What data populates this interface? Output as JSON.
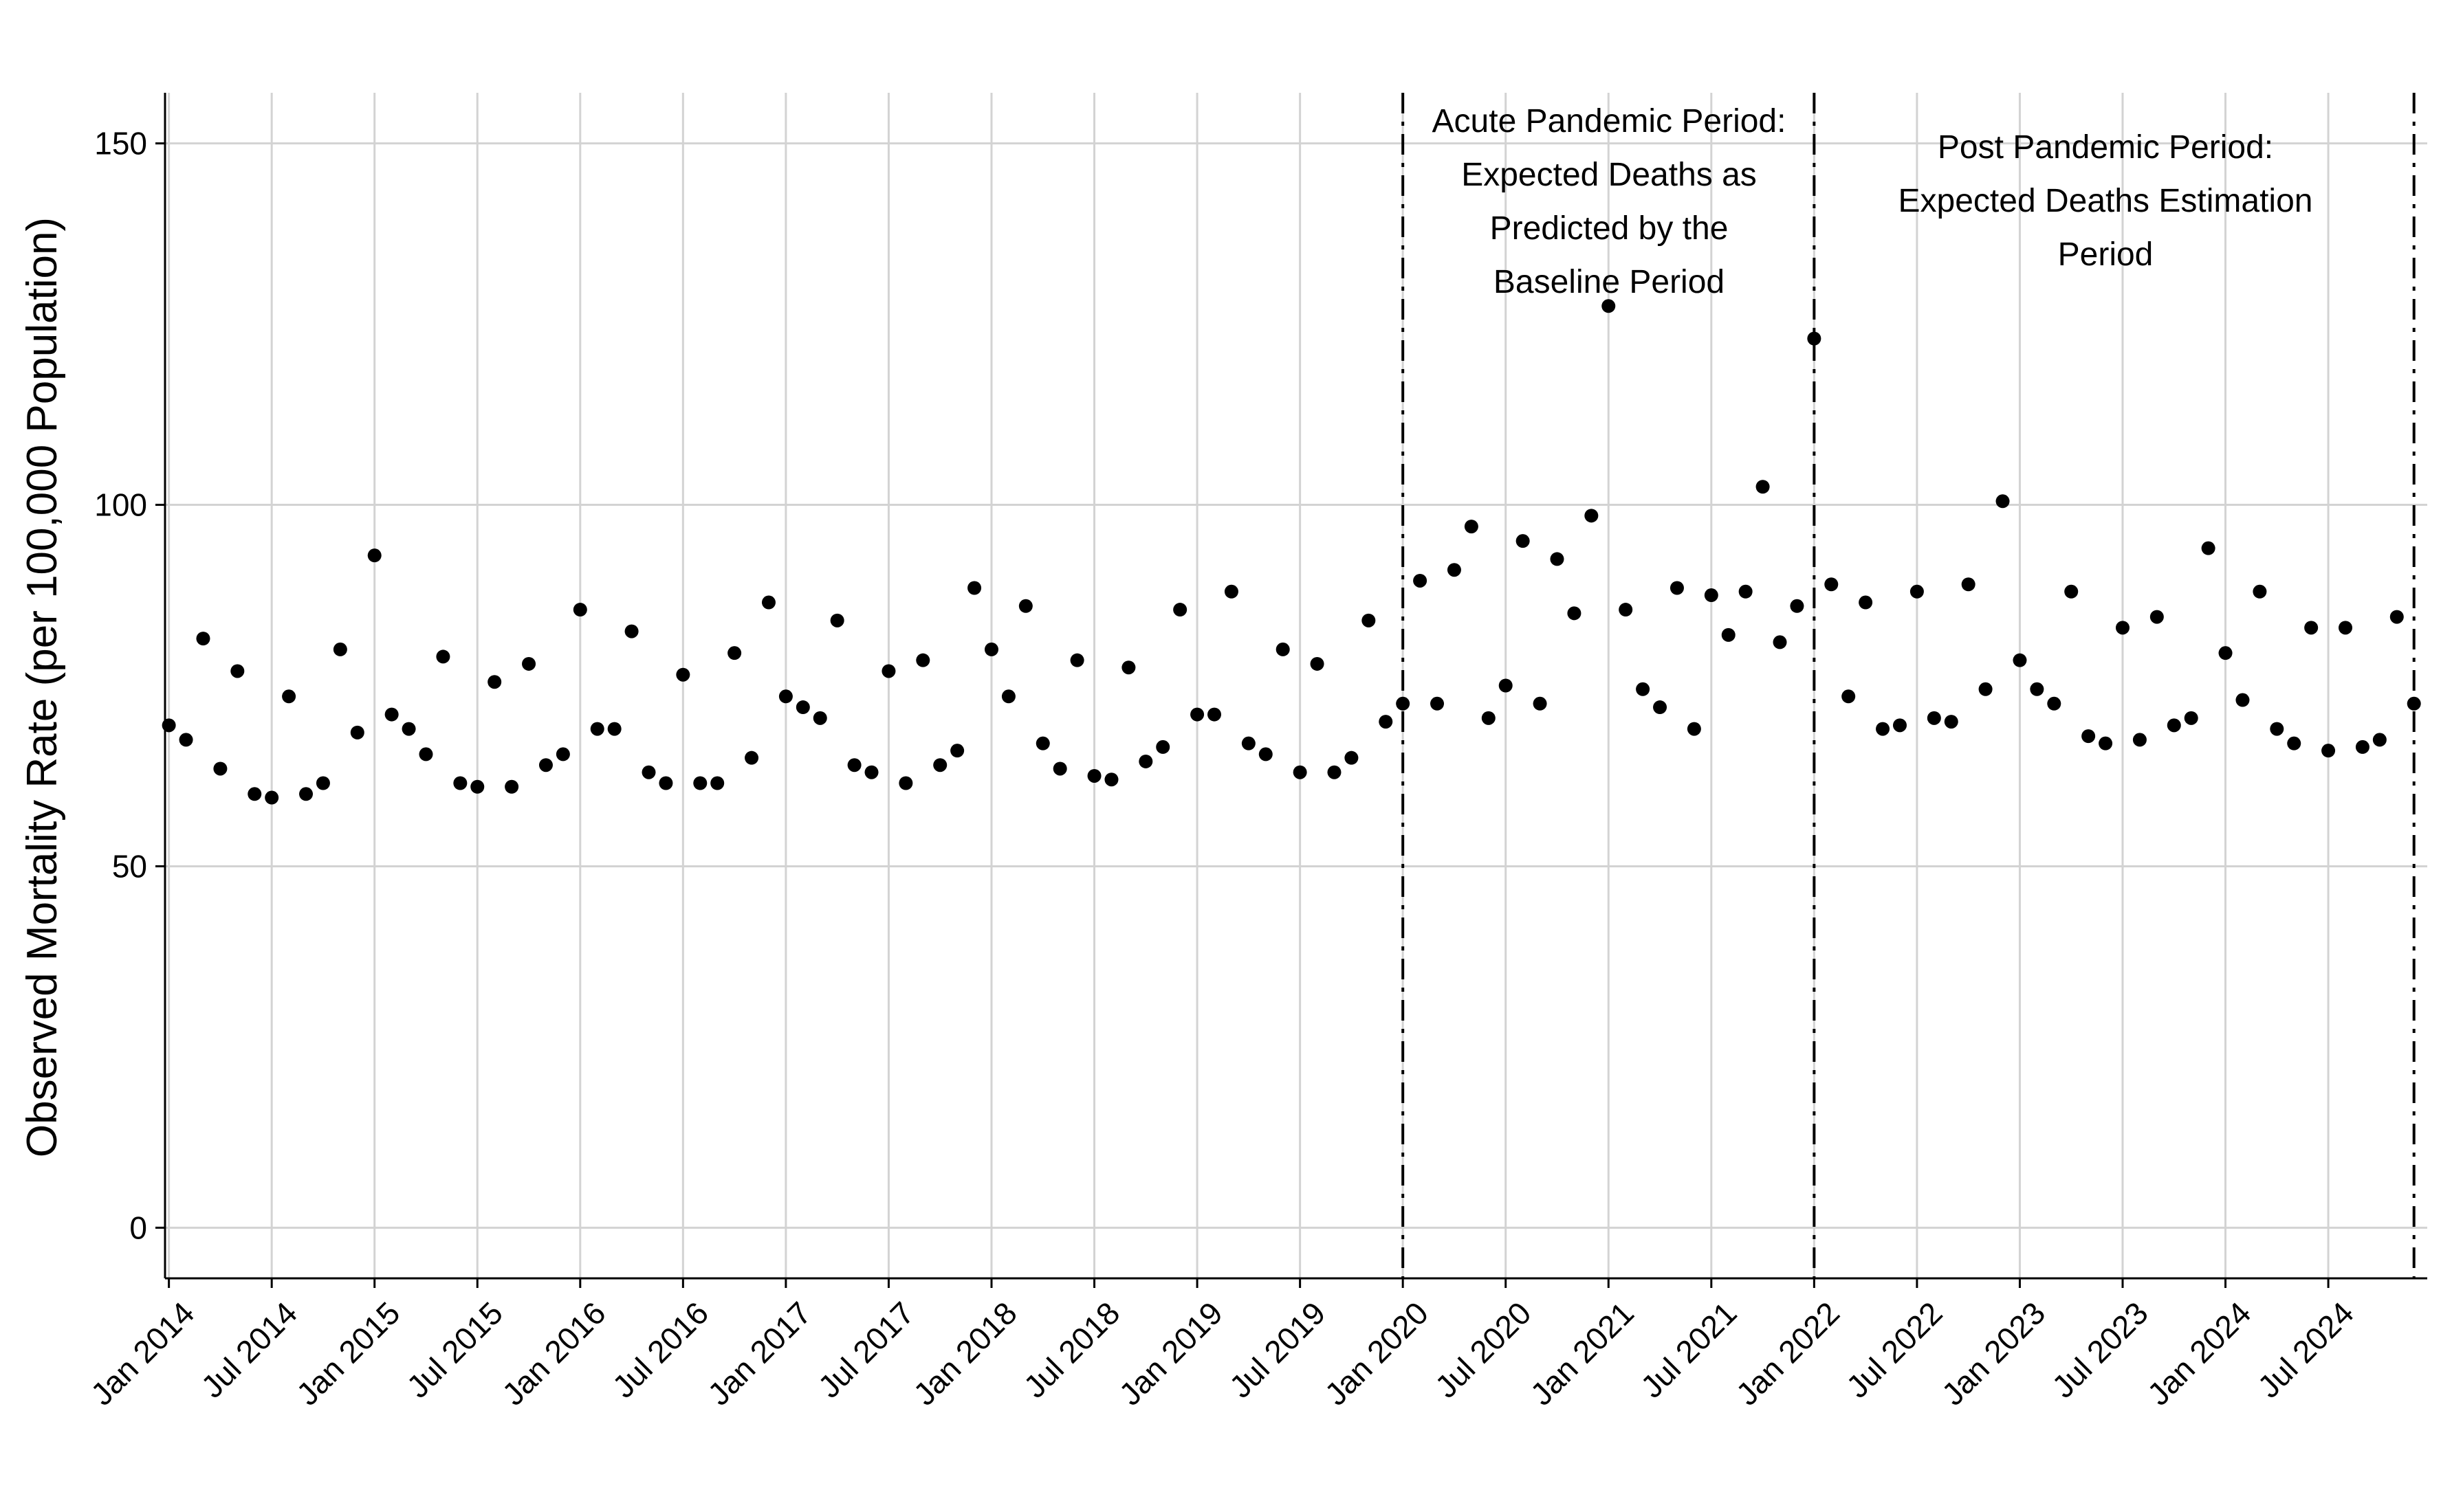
{
  "chart_data": {
    "type": "scatter",
    "title": "",
    "xlabel": "",
    "ylabel": "Observed Mortality Rate (per 100,000 Population)",
    "ylim": [
      -7,
      157
    ],
    "xlim": [
      "2013-12-25",
      "2024-12-25"
    ],
    "yticks": [
      0,
      50,
      100,
      150
    ],
    "xticks": [
      {
        "date": "2014-01",
        "label": "Jan 2014"
      },
      {
        "date": "2014-07",
        "label": "Jul 2014"
      },
      {
        "date": "2015-01",
        "label": "Jan 2015"
      },
      {
        "date": "2015-07",
        "label": "Jul 2015"
      },
      {
        "date": "2016-01",
        "label": "Jan 2016"
      },
      {
        "date": "2016-07",
        "label": "Jul 2016"
      },
      {
        "date": "2017-01",
        "label": "Jan 2017"
      },
      {
        "date": "2017-07",
        "label": "Jul 2017"
      },
      {
        "date": "2018-01",
        "label": "Jan 2018"
      },
      {
        "date": "2018-07",
        "label": "Jul 2018"
      },
      {
        "date": "2019-01",
        "label": "Jan 2019"
      },
      {
        "date": "2019-07",
        "label": "Jul 2019"
      },
      {
        "date": "2020-01",
        "label": "Jan 2020"
      },
      {
        "date": "2020-07",
        "label": "Jul 2020"
      },
      {
        "date": "2021-01",
        "label": "Jan 2021"
      },
      {
        "date": "2021-07",
        "label": "Jul 2021"
      },
      {
        "date": "2022-01",
        "label": "Jan 2022"
      },
      {
        "date": "2022-07",
        "label": "Jul 2022"
      },
      {
        "date": "2023-01",
        "label": "Jan 2023"
      },
      {
        "date": "2023-07",
        "label": "Jul 2023"
      },
      {
        "date": "2024-01",
        "label": "Jan 2024"
      },
      {
        "date": "2024-07",
        "label": "Jul 2024"
      }
    ],
    "grid": true,
    "legend": "none",
    "point_color": "#000000",
    "grid_color": "#d3d3d3",
    "vlines": [
      {
        "date": "2020-01",
        "style": "dash-dot"
      },
      {
        "date": "2022-01",
        "style": "dash-dot"
      },
      {
        "date": "2024-12",
        "style": "dash-dot"
      }
    ],
    "annotations": [
      {
        "lines": [
          "Acute Pandemic Period:",
          "Expected Deaths as",
          "Predicted by the",
          "Baseline Period"
        ]
      },
      {
        "lines": [
          "Post Pandemic Period:",
          "Expected Deaths Estimation",
          "Period"
        ]
      }
    ],
    "series": [
      {
        "x": [
          "2014-01",
          "2014-02",
          "2014-03",
          "2014-04",
          "2014-05",
          "2014-06",
          "2014-07",
          "2014-08",
          "2014-09",
          "2014-10",
          "2014-11",
          "2014-12",
          "2015-01",
          "2015-02",
          "2015-03",
          "2015-04",
          "2015-05",
          "2015-06",
          "2015-07",
          "2015-08",
          "2015-09",
          "2015-10",
          "2015-11",
          "2015-12",
          "2016-01",
          "2016-02",
          "2016-03",
          "2016-04",
          "2016-05",
          "2016-06",
          "2016-07",
          "2016-08",
          "2016-09",
          "2016-10",
          "2016-11",
          "2016-12",
          "2017-01",
          "2017-02",
          "2017-03",
          "2017-04",
          "2017-05",
          "2017-06",
          "2017-07",
          "2017-08",
          "2017-09",
          "2017-10",
          "2017-11",
          "2017-12",
          "2018-01",
          "2018-02",
          "2018-03",
          "2018-04",
          "2018-05",
          "2018-06",
          "2018-07",
          "2018-08",
          "2018-09",
          "2018-10",
          "2018-11",
          "2018-12",
          "2019-01",
          "2019-02",
          "2019-03",
          "2019-04",
          "2019-05",
          "2019-06",
          "2019-07",
          "2019-08",
          "2019-09",
          "2019-10",
          "2019-11",
          "2019-12",
          "2020-01",
          "2020-02",
          "2020-03",
          "2020-04",
          "2020-05",
          "2020-06",
          "2020-07",
          "2020-08",
          "2020-09",
          "2020-10",
          "2020-11",
          "2020-12",
          "2021-01",
          "2021-02",
          "2021-03",
          "2021-04",
          "2021-05",
          "2021-06",
          "2021-07",
          "2021-08",
          "2021-09",
          "2021-10",
          "2021-11",
          "2021-12",
          "2022-01",
          "2022-02",
          "2022-03",
          "2022-04",
          "2022-05",
          "2022-06",
          "2022-07",
          "2022-08",
          "2022-09",
          "2022-10",
          "2022-11",
          "2022-12",
          "2023-01",
          "2023-02",
          "2023-03",
          "2023-04",
          "2023-05",
          "2023-06",
          "2023-07",
          "2023-08",
          "2023-09",
          "2023-10",
          "2023-11",
          "2023-12",
          "2024-01",
          "2024-02",
          "2024-03",
          "2024-04",
          "2024-05",
          "2024-06",
          "2024-07",
          "2024-08",
          "2024-09",
          "2024-10",
          "2024-11",
          "2024-12"
        ],
        "y": [
          69.5,
          67.5,
          81.5,
          63.5,
          77,
          60,
          59.5,
          73.5,
          60,
          61.5,
          80,
          68.5,
          93,
          71,
          69,
          65.5,
          79,
          61.5,
          61,
          75.5,
          61,
          78,
          64,
          65.5,
          85.5,
          69,
          69,
          82.5,
          63,
          61.5,
          76.5,
          61.5,
          61.5,
          79.5,
          65,
          86.5,
          73.5,
          72,
          70.5,
          84,
          64,
          63,
          77,
          61.5,
          78.5,
          64,
          66,
          88.5,
          80,
          73.5,
          86,
          67,
          63.5,
          78.5,
          62.5,
          62,
          77.5,
          64.5,
          66.5,
          85.5,
          71,
          71,
          88,
          67,
          65.5,
          80,
          63,
          78,
          63,
          65,
          84,
          70,
          72.5,
          89.5,
          72.5,
          91,
          97,
          70.5,
          75,
          95,
          72.5,
          92.5,
          85,
          98.5,
          127.5,
          85.5,
          74.5,
          72,
          88.5,
          69,
          87.5,
          82,
          88,
          102.5,
          81,
          86,
          123,
          89,
          73.5,
          86.5,
          69,
          69.5,
          88,
          70.5,
          70,
          89,
          74.5,
          100.5,
          78.5,
          74.5,
          72.5,
          88,
          68,
          67,
          83,
          67.5,
          84.5,
          69.5,
          70.5,
          94,
          79.5,
          73,
          88,
          69,
          67,
          83,
          66,
          83,
          66.5,
          67.5,
          84.5,
          72.5
        ]
      }
    ]
  }
}
